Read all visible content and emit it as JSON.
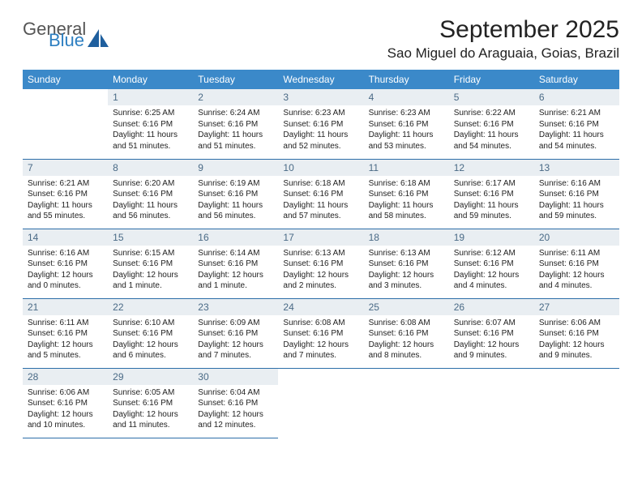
{
  "brand": {
    "line1": "General",
    "line2": "Blue",
    "icon_color": "#1f5f9e"
  },
  "title": "September 2025",
  "location": "Sao Miguel do Araguaia, Goias, Brazil",
  "colors": {
    "header_bg": "#3b89c9",
    "header_text": "#ffffff",
    "daynum_bg": "#e9eef2",
    "daynum_text": "#4a6a86",
    "rule": "#2d6ea8",
    "body_text": "#222222"
  },
  "weekdays": [
    "Sunday",
    "Monday",
    "Tuesday",
    "Wednesday",
    "Thursday",
    "Friday",
    "Saturday"
  ],
  "weeks": [
    [
      null,
      {
        "n": "1",
        "sunrise": "Sunrise: 6:25 AM",
        "sunset": "Sunset: 6:16 PM",
        "daylight": "Daylight: 11 hours and 51 minutes."
      },
      {
        "n": "2",
        "sunrise": "Sunrise: 6:24 AM",
        "sunset": "Sunset: 6:16 PM",
        "daylight": "Daylight: 11 hours and 51 minutes."
      },
      {
        "n": "3",
        "sunrise": "Sunrise: 6:23 AM",
        "sunset": "Sunset: 6:16 PM",
        "daylight": "Daylight: 11 hours and 52 minutes."
      },
      {
        "n": "4",
        "sunrise": "Sunrise: 6:23 AM",
        "sunset": "Sunset: 6:16 PM",
        "daylight": "Daylight: 11 hours and 53 minutes."
      },
      {
        "n": "5",
        "sunrise": "Sunrise: 6:22 AM",
        "sunset": "Sunset: 6:16 PM",
        "daylight": "Daylight: 11 hours and 54 minutes."
      },
      {
        "n": "6",
        "sunrise": "Sunrise: 6:21 AM",
        "sunset": "Sunset: 6:16 PM",
        "daylight": "Daylight: 11 hours and 54 minutes."
      }
    ],
    [
      {
        "n": "7",
        "sunrise": "Sunrise: 6:21 AM",
        "sunset": "Sunset: 6:16 PM",
        "daylight": "Daylight: 11 hours and 55 minutes."
      },
      {
        "n": "8",
        "sunrise": "Sunrise: 6:20 AM",
        "sunset": "Sunset: 6:16 PM",
        "daylight": "Daylight: 11 hours and 56 minutes."
      },
      {
        "n": "9",
        "sunrise": "Sunrise: 6:19 AM",
        "sunset": "Sunset: 6:16 PM",
        "daylight": "Daylight: 11 hours and 56 minutes."
      },
      {
        "n": "10",
        "sunrise": "Sunrise: 6:18 AM",
        "sunset": "Sunset: 6:16 PM",
        "daylight": "Daylight: 11 hours and 57 minutes."
      },
      {
        "n": "11",
        "sunrise": "Sunrise: 6:18 AM",
        "sunset": "Sunset: 6:16 PM",
        "daylight": "Daylight: 11 hours and 58 minutes."
      },
      {
        "n": "12",
        "sunrise": "Sunrise: 6:17 AM",
        "sunset": "Sunset: 6:16 PM",
        "daylight": "Daylight: 11 hours and 59 minutes."
      },
      {
        "n": "13",
        "sunrise": "Sunrise: 6:16 AM",
        "sunset": "Sunset: 6:16 PM",
        "daylight": "Daylight: 11 hours and 59 minutes."
      }
    ],
    [
      {
        "n": "14",
        "sunrise": "Sunrise: 6:16 AM",
        "sunset": "Sunset: 6:16 PM",
        "daylight": "Daylight: 12 hours and 0 minutes."
      },
      {
        "n": "15",
        "sunrise": "Sunrise: 6:15 AM",
        "sunset": "Sunset: 6:16 PM",
        "daylight": "Daylight: 12 hours and 1 minute."
      },
      {
        "n": "16",
        "sunrise": "Sunrise: 6:14 AM",
        "sunset": "Sunset: 6:16 PM",
        "daylight": "Daylight: 12 hours and 1 minute."
      },
      {
        "n": "17",
        "sunrise": "Sunrise: 6:13 AM",
        "sunset": "Sunset: 6:16 PM",
        "daylight": "Daylight: 12 hours and 2 minutes."
      },
      {
        "n": "18",
        "sunrise": "Sunrise: 6:13 AM",
        "sunset": "Sunset: 6:16 PM",
        "daylight": "Daylight: 12 hours and 3 minutes."
      },
      {
        "n": "19",
        "sunrise": "Sunrise: 6:12 AM",
        "sunset": "Sunset: 6:16 PM",
        "daylight": "Daylight: 12 hours and 4 minutes."
      },
      {
        "n": "20",
        "sunrise": "Sunrise: 6:11 AM",
        "sunset": "Sunset: 6:16 PM",
        "daylight": "Daylight: 12 hours and 4 minutes."
      }
    ],
    [
      {
        "n": "21",
        "sunrise": "Sunrise: 6:11 AM",
        "sunset": "Sunset: 6:16 PM",
        "daylight": "Daylight: 12 hours and 5 minutes."
      },
      {
        "n": "22",
        "sunrise": "Sunrise: 6:10 AM",
        "sunset": "Sunset: 6:16 PM",
        "daylight": "Daylight: 12 hours and 6 minutes."
      },
      {
        "n": "23",
        "sunrise": "Sunrise: 6:09 AM",
        "sunset": "Sunset: 6:16 PM",
        "daylight": "Daylight: 12 hours and 7 minutes."
      },
      {
        "n": "24",
        "sunrise": "Sunrise: 6:08 AM",
        "sunset": "Sunset: 6:16 PM",
        "daylight": "Daylight: 12 hours and 7 minutes."
      },
      {
        "n": "25",
        "sunrise": "Sunrise: 6:08 AM",
        "sunset": "Sunset: 6:16 PM",
        "daylight": "Daylight: 12 hours and 8 minutes."
      },
      {
        "n": "26",
        "sunrise": "Sunrise: 6:07 AM",
        "sunset": "Sunset: 6:16 PM",
        "daylight": "Daylight: 12 hours and 9 minutes."
      },
      {
        "n": "27",
        "sunrise": "Sunrise: 6:06 AM",
        "sunset": "Sunset: 6:16 PM",
        "daylight": "Daylight: 12 hours and 9 minutes."
      }
    ],
    [
      {
        "n": "28",
        "sunrise": "Sunrise: 6:06 AM",
        "sunset": "Sunset: 6:16 PM",
        "daylight": "Daylight: 12 hours and 10 minutes."
      },
      {
        "n": "29",
        "sunrise": "Sunrise: 6:05 AM",
        "sunset": "Sunset: 6:16 PM",
        "daylight": "Daylight: 12 hours and 11 minutes."
      },
      {
        "n": "30",
        "sunrise": "Sunrise: 6:04 AM",
        "sunset": "Sunset: 6:16 PM",
        "daylight": "Daylight: 12 hours and 12 minutes."
      },
      null,
      null,
      null,
      null
    ]
  ]
}
